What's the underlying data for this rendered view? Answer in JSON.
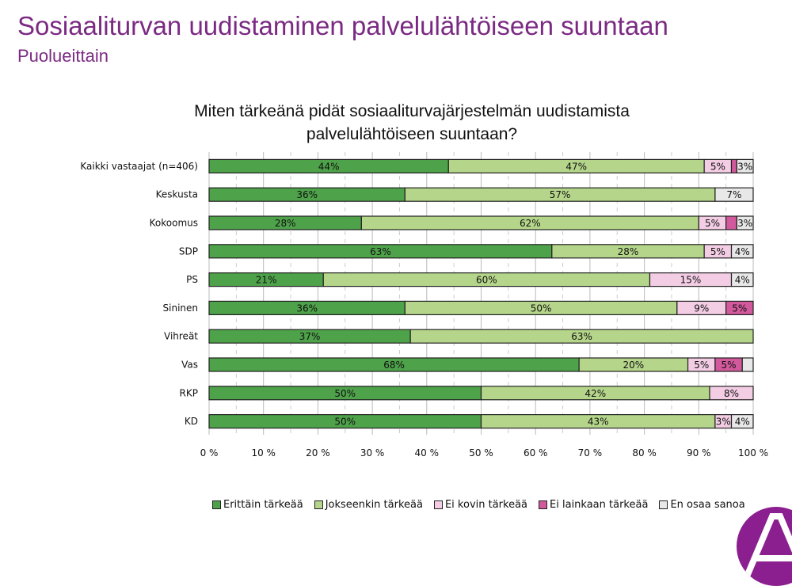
{
  "header": {
    "title": "Sosiaaliturvan uudistaminen palvelulähtöiseen suuntaan",
    "subtitle": "Puolueittain"
  },
  "chart_data": {
    "type": "bar",
    "orientation": "horizontal-stacked-100",
    "title_line1": "Miten tärkeänä pidät sosiaaliturvajärjestelmän uudistamista",
    "title_line2": "palvelulähtöiseen suuntaan?",
    "categories": [
      "Kaikki vastaajat (n=406)",
      "Keskusta",
      "Kokoomus",
      "SDP",
      "PS",
      "Sininen",
      "Vihreät",
      "Vas",
      "RKP",
      "KD"
    ],
    "series": [
      {
        "name": "Erittäin tärkeää",
        "color": "#4ea24a",
        "values": [
          44,
          36,
          28,
          63,
          21,
          36,
          37,
          68,
          50,
          50
        ],
        "labels": [
          "44%",
          "36%",
          "28%",
          "63%",
          "21%",
          "36%",
          "37%",
          "68%",
          "50%",
          "50%"
        ]
      },
      {
        "name": "Jokseenkin tärkeää",
        "color": "#b5d68a",
        "values": [
          47,
          57,
          62,
          28,
          60,
          50,
          63,
          20,
          42,
          43
        ],
        "labels": [
          "47%",
          "57%",
          "62%",
          "28%",
          "60%",
          "50%",
          "63%",
          "20%",
          "42%",
          "43%"
        ]
      },
      {
        "name": "Ei kovin tärkeää",
        "color": "#f3cde4",
        "values": [
          5,
          0,
          5,
          5,
          15,
          9,
          0,
          5,
          8,
          3
        ],
        "labels": [
          "5%",
          "",
          "5%",
          "5%",
          "15%",
          "9%",
          "",
          "5%",
          "8%",
          "3%"
        ]
      },
      {
        "name": "Ei lainkaan tärkeää",
        "color": "#d2599c",
        "values": [
          1,
          0,
          2,
          0,
          0,
          5,
          0,
          5,
          0,
          0
        ],
        "labels": [
          "",
          "",
          "",
          "",
          "",
          "5%",
          "",
          "5%",
          "",
          ""
        ]
      },
      {
        "name": "En osaa sanoa",
        "color": "#e8e8e8",
        "values": [
          3,
          7,
          3,
          4,
          4,
          0,
          0,
          2,
          0,
          4
        ],
        "labels": [
          "3%",
          "7%",
          "3%",
          "4%",
          "4%",
          "",
          "",
          "",
          "",
          "4%"
        ]
      }
    ],
    "xticks": [
      "0 %",
      "10 %",
      "20 %",
      "30 %",
      "40 %",
      "50 %",
      "60 %",
      "70 %",
      "80 %",
      "90 %",
      "100 %"
    ],
    "xlim": [
      0,
      100
    ],
    "grid": true,
    "legend": "bottom"
  }
}
